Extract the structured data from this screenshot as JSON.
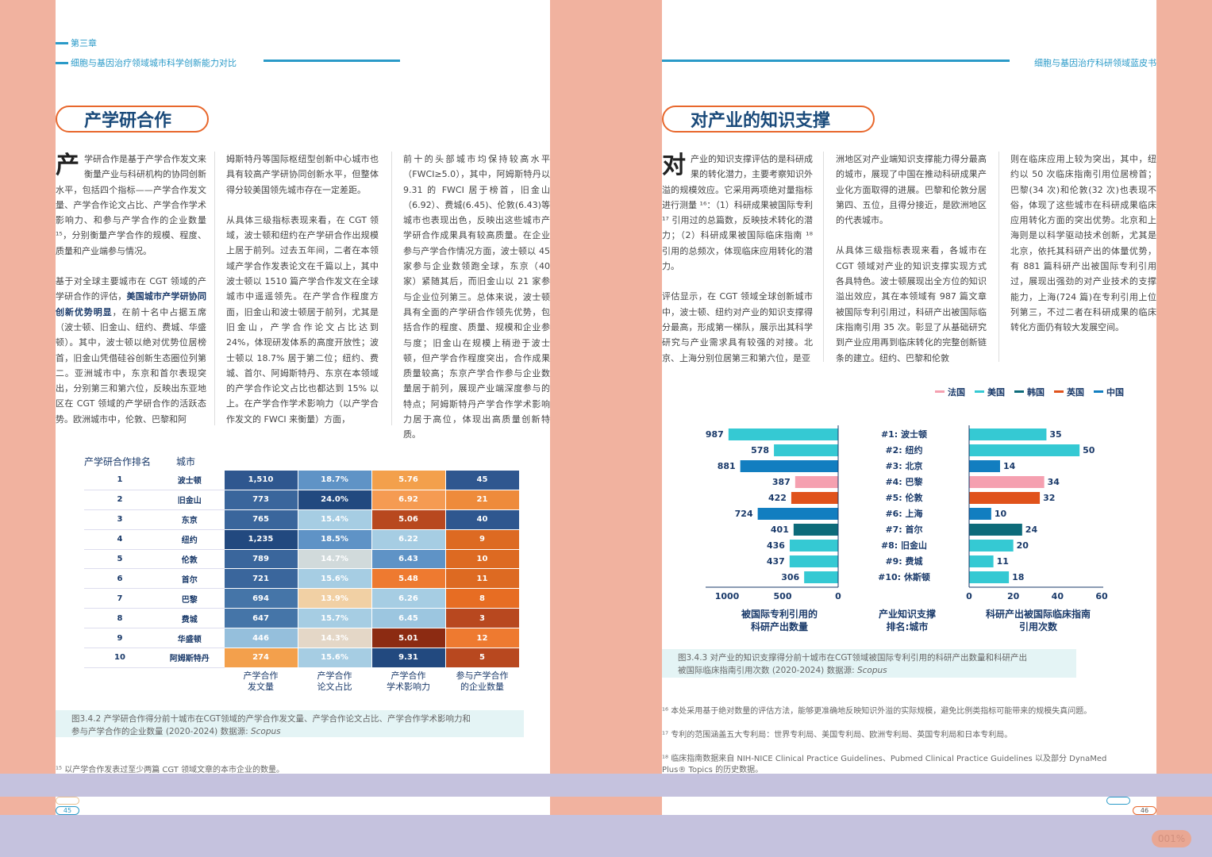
{
  "left": {
    "chapter": "第三章",
    "chapter_title": "细胞与基因治疗领域城市科学创新能力对比",
    "section_title": "产学研合作",
    "drop_cap": "产",
    "col1_p1": "学研合作是基于产学合作发文来衡量产业与科研机构的协同创新水平，包括四个指标——产学合作发文量、产学合作论文占比、产学合作学术影响力、和参与产学合作的企业数量 ¹⁵，分别衡量产学合作的规模、程度、质量和产业端参与情况。",
    "col1_p2a": "基于对全球主要城市在 CGT 领域的产学研合作的评估，",
    "col1_p2b": "美国城市产学研协同创新优势明显",
    "col1_p2c": "，在前十名中占据五席（波士顿、旧金山、纽约、费城、华盛顿）。其中，波士顿以绝对优势位居榜首，旧金山凭借硅谷创新生态圈位列第二。亚洲城市中，东京和首尔表现突出，分别第三和第六位，反映出东亚地区在 CGT 领域的产学研合作的活跃态势。欧洲城市中，伦敦、巴黎和阿",
    "col2_p1": "姆斯特丹等国际枢纽型创新中心城市也具有较高产学研协同创新水平，但整体得分较美国领先城市存在一定差距。",
    "col2_p2": "从具体三级指标表现来看，在 CGT 领域，波士顿和纽约在产学研合作出规模上居于前列。过去五年间，二者在本领域产学合作发表论文在千篇以上，其中波士顿以 1510 篇产学合作发文在全球城市中遥遥领先。在产学合作程度方面，旧金山和波士顿居于前列，尤其是旧金山，产学合作论文占比达到 24%，体现研发体系的高度开放性；波士顿以 18.7% 居于第二位；纽约、费城、首尔、阿姆斯特丹、东京在本领域的产学合作论文占比也都达到 15% 以上。在产学合作学术影响力（以产学合作发文的 FWCI 来衡量）方面，",
    "col3_p1": "前十的头部城市均保持较高水平（FWCI≥5.0），其中，阿姆斯特丹以 9.31 的 FWCI 居于榜首，旧金山（6.92）、费城(6.45)、伦敦(6.43)等城市也表现出色，反映出这些城市产学研合作成果具有较高质量。在企业参与产学合作情况方面，波士顿以 45 家参与企业数领跑全球，东京（40 家）紧随其后，而旧金山以 21 家参与企业位列第三。总体来说，波士顿具有全面的产学研合作领先优势，包括合作的程度、质量、规模和企业参与度；旧金山在规模上稍逊于波士顿，但产学合作程度突出，合作成果质量较高；东京产学合作参与企业数量居于前列，展现产业端深度参与的特点；阿姆斯特丹产学合作学术影响力居于高位，体现出高质量创新特质。",
    "table_head_rank": "产学研合作排名",
    "table_head_city": "城市",
    "table_foot": [
      "产学合作\n发文量",
      "产学合作\n论文占比",
      "产学合作\n学术影响力",
      "参与产学合作\n的企业数量"
    ],
    "rows": [
      {
        "rank": "1",
        "city": "波士顿",
        "v": [
          "1,510",
          "18.7%",
          "5.76",
          "45"
        ]
      },
      {
        "rank": "2",
        "city": "旧金山",
        "v": [
          "773",
          "24.0%",
          "6.92",
          "21"
        ]
      },
      {
        "rank": "3",
        "city": "东京",
        "v": [
          "765",
          "15.4%",
          "5.06",
          "40"
        ]
      },
      {
        "rank": "4",
        "city": "纽约",
        "v": [
          "1,235",
          "18.5%",
          "6.22",
          "9"
        ]
      },
      {
        "rank": "5",
        "city": "伦敦",
        "v": [
          "789",
          "14.7%",
          "6.43",
          "10"
        ]
      },
      {
        "rank": "6",
        "city": "首尔",
        "v": [
          "721",
          "15.6%",
          "5.48",
          "11"
        ]
      },
      {
        "rank": "7",
        "city": "巴黎",
        "v": [
          "694",
          "13.9%",
          "6.26",
          "8"
        ]
      },
      {
        "rank": "8",
        "city": "费城",
        "v": [
          "647",
          "15.7%",
          "6.45",
          "3"
        ]
      },
      {
        "rank": "9",
        "city": "华盛顿",
        "v": [
          "446",
          "14.3%",
          "5.01",
          "12"
        ]
      },
      {
        "rank": "10",
        "city": "阿姆斯特丹",
        "v": [
          "274",
          "15.6%",
          "9.31",
          "5"
        ]
      }
    ],
    "cell_colors": [
      [
        "#2f578f",
        "#5f93c6",
        "#f3a04c",
        "#2f578f"
      ],
      [
        "#3a669c",
        "#22497f",
        "#f59b52",
        "#ee8b3b"
      ],
      [
        "#3a669c",
        "#a6cde3",
        "#b8481f",
        "#2f578f"
      ],
      [
        "#22497f",
        "#5f93c6",
        "#a6cde3",
        "#dd6a22"
      ],
      [
        "#3a669c",
        "#d1dadb",
        "#5f93c6",
        "#dd6a22"
      ],
      [
        "#3a669c",
        "#a6cde3",
        "#ee7a30",
        "#dd6a22"
      ],
      [
        "#4575a8",
        "#f1d0a4",
        "#a6cde3",
        "#e76d23"
      ],
      [
        "#4575a8",
        "#a6cde3",
        "#9cc6e0",
        "#b8481f"
      ],
      [
        "#95bfdc",
        "#e4d7c7",
        "#8c2b12",
        "#ee7a30"
      ],
      [
        "#f3a04c",
        "#a6cde3",
        "#22497f",
        "#b8481f"
      ]
    ],
    "caption_l1": "图3.4.2  产学研合作得分前十城市在CGT领域的产学合作发文量、产学合作论文占比、产学合作学术影响力和",
    "caption_l2": "参与产学合作的企业数量 (2020-2024)  数据源: ",
    "caption_src": "Scopus",
    "footnote": "¹⁵ 以产学合作发表过至少两篇 CGT 领域文章的本市企业的数量。",
    "page_no": "45"
  },
  "right": {
    "book_title": "细胞与基因治疗科研领域蓝皮书",
    "section_title": "对产业的知识支撑",
    "drop_cap": "对",
    "col1_p1": "产业的知识支撑评估的是科研成果的转化潜力，主要考察知识外溢的规模效应。它采用两项绝对量指标进行测量 ¹⁶：（1）科研成果被国际专利 ¹⁷ 引用过的总篇数，反映技术转化的潜力；（2）科研成果被国际临床指南 ¹⁸ 引用的总频次，体现临床应用转化的潜力。",
    "col1_p2": "评估显示，在 CGT 领域全球创新城市中，波士顿、纽约对产业的知识支撑得分最高，形成第一梯队，展示出其科学研究与产业需求具有较强的对接。北京、上海分别位居第三和第六位，是亚",
    "col2_p1": "洲地区对产业端知识支撑能力得分最高的城市，展现了中国在推动科研成果产业化方面取得的进展。巴黎和伦敦分居第四、五位，且得分接近，是欧洲地区的代表城市。",
    "col2_p2": "从具体三级指标表现来看，各城市在 CGT 领域对产业的知识支撑实现方式各具特色。波士顿展现出全方位的知识溢出效应，其在本领域有 987 篇文章被国际专利引用过，科研产出被国际临床指南引用 35 次。彰显了从基础研究到产业应用再到临床转化的完整创新链条的建立。纽约、巴黎和伦敦",
    "col3_p1": "则在临床应用上较为突出，其中，纽约以 50 次临床指南引用位居榜首；巴黎(34 次)和伦敦(32 次)也表现不俗，体现了这些城市在科研成果临床应用转化方面的突出优势。北京和上海则是以科学驱动技术创新，尤其是北京，依托其科研产出的体量优势，有 881 篇科研产出被国际专利引用过，展现出强劲的对产业技术的支撑能力，上海(724 篇)在专利引用上位列第三，不过二者在科研成果的临床转化方面仍有较大发展空间。",
    "legend": [
      {
        "label": "法国",
        "color": "#f5a0b0"
      },
      {
        "label": "美国",
        "color": "#35c9d3"
      },
      {
        "label": "韩国",
        "color": "#0d6b7a"
      },
      {
        "label": "英国",
        "color": "#e0521b"
      },
      {
        "label": "中国",
        "color": "#127ec0"
      }
    ],
    "axis_left_label": [
      "被国际专利引用的",
      "科研产出数量"
    ],
    "axis_mid_label": [
      "产业知识支撑",
      "排名:城市"
    ],
    "axis_right_label": [
      "科研产出被国际临床指南",
      "引用次数"
    ],
    "caption_l1": "图3.4.3  对产业的知识支撑得分前十城市在CGT领域被国际专利引用的科研产出数量和科研产出",
    "caption_l2": "被国际临床指南引用次数 (2020-2024)  数据源: ",
    "caption_src": "Scopus",
    "fn16": "¹⁶ 本处采用基于绝对数量的评估方法，能够更准确地反映知识外溢的实际规模，避免比例类指标可能带来的规模失真问题。",
    "fn17": "¹⁷ 专利的范围涵盖五大专利局：世界专利局、美国专利局、欧洲专利局、英国专利局和日本专利局。",
    "fn18a": "¹⁸ 临床指南数据来自 NIH-NICE Clinical Practice Guidelines、Pubmed Clinical Practice Guidelines 以及部分 DynaMed",
    "fn18b": "Plus® Topics 的历史数据。",
    "page_no": "46"
  },
  "chart_data": {
    "type": "bar",
    "categories": [
      "#1: 波士顿",
      "#2: 纽约",
      "#3: 北京",
      "#4: 巴黎",
      "#5: 伦敦",
      "#6: 上海",
      "#7: 首尔",
      "#8: 旧金山",
      "#9: 费城",
      "#10: 休斯顿"
    ],
    "series": [
      {
        "values": [
          987,
          578,
          881,
          387,
          422,
          724,
          401,
          436,
          437,
          306
        ]
      },
      {
        "values": [
          35,
          50,
          14,
          34,
          32,
          10,
          24,
          20,
          11,
          18
        ]
      }
    ],
    "country": [
      "美国",
      "美国",
      "中国",
      "法国",
      "英国",
      "中国",
      "韩国",
      "美国",
      "美国",
      "美国"
    ],
    "left_ticks": [
      "1000",
      "500",
      "0"
    ],
    "right_ticks": [
      "0",
      "20",
      "40",
      "60"
    ],
    "xlim_left": [
      0,
      1000
    ],
    "xlim_right": [
      0,
      60
    ]
  },
  "watermark": "001%"
}
